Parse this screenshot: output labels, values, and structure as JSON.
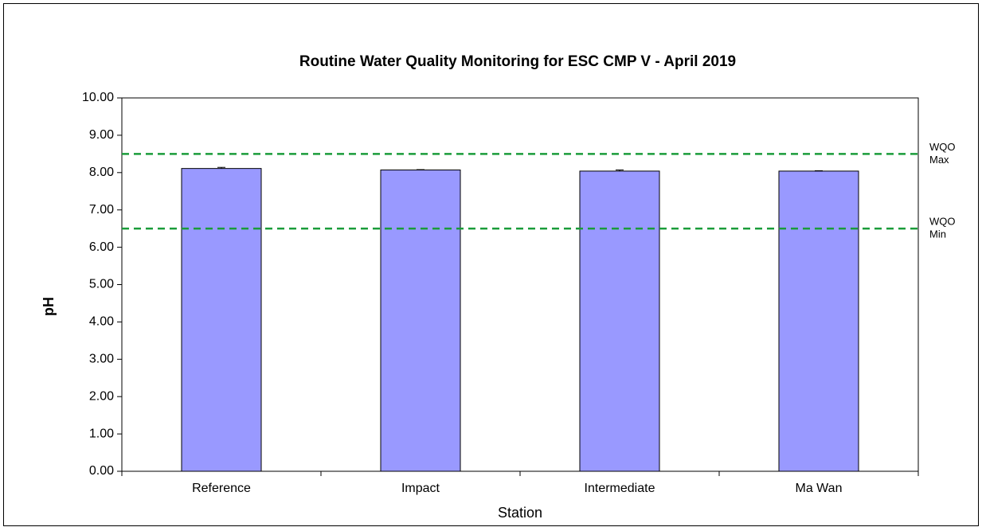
{
  "chart_data": {
    "type": "bar",
    "title": "Routine Water Quality Monitoring for ESC CMP V -  April 2019",
    "x_label": "Station",
    "y_label": "pH",
    "categories": [
      "Reference",
      "Impact",
      "Intermediate",
      "Ma Wan"
    ],
    "values": [
      8.11,
      8.07,
      8.04,
      8.04
    ],
    "errors": [
      0.03,
      0.01,
      0.03,
      0.01
    ],
    "color": "#9999ff",
    "ylim": [
      0,
      10
    ],
    "yticks": [
      {
        "value": 0,
        "label": "0.00"
      },
      {
        "value": 1,
        "label": "1.00"
      },
      {
        "value": 2,
        "label": "2.00"
      },
      {
        "value": 3,
        "label": "3.00"
      },
      {
        "value": 4,
        "label": "4.00"
      },
      {
        "value": 5,
        "label": "5.00"
      },
      {
        "value": 6,
        "label": "6.00"
      },
      {
        "value": 7,
        "label": "7.00"
      },
      {
        "value": 8,
        "label": "8.00"
      },
      {
        "value": 9,
        "label": "9.00"
      },
      {
        "value": 10,
        "label": "10.00"
      }
    ],
    "reference_lines": [
      {
        "value": 8.5,
        "label": [
          "WQO",
          "Max"
        ],
        "color": "#1a9c3a"
      },
      {
        "value": 6.5,
        "label": [
          "WQO",
          "Min"
        ],
        "color": "#1a9c3a"
      }
    ]
  }
}
